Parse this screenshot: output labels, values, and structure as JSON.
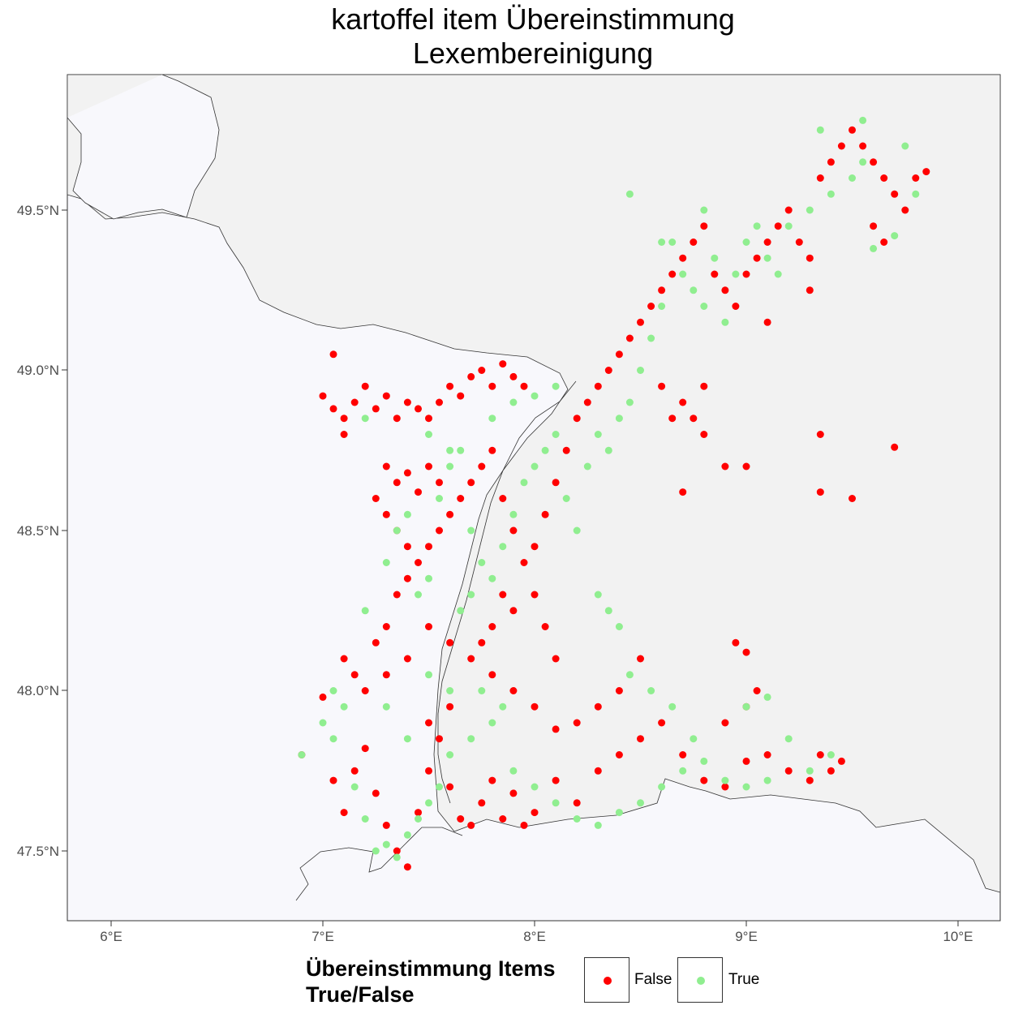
{
  "title_line1": "kartoffel item Übereinstimmung",
  "title_line2": "Lexembereinigung",
  "axes": {
    "x_ticks": [
      "6°E",
      "7°E",
      "8°E",
      "9°E",
      "10°E"
    ],
    "y_ticks": [
      "49.5°N",
      "49.0°N",
      "48.5°N",
      "48.0°N",
      "47.5°N"
    ]
  },
  "legend": {
    "title_line1": "Übereinstimmung Items",
    "title_line2": "True/False",
    "items": [
      {
        "label": "False",
        "color": "#ff0000"
      },
      {
        "label": "True",
        "color": "#90ee90"
      }
    ]
  },
  "colors": {
    "false": "#ff0000",
    "true": "#90ee90",
    "land": "#f2f2f2",
    "background": "#f8f8fc"
  },
  "chart_data": {
    "type": "scatter",
    "xlim": [
      5.82,
      10.22
    ],
    "ylim": [
      47.3,
      49.9
    ],
    "x_ticks": [
      6,
      7,
      8,
      9,
      10
    ],
    "y_ticks": [
      49.5,
      49.0,
      48.5,
      48.0,
      47.5
    ],
    "legend_position": "bottom",
    "series": [
      {
        "name": "False",
        "color": "#ff0000",
        "points": [
          [
            7.0,
            47.98
          ],
          [
            7.05,
            47.72
          ],
          [
            7.1,
            47.62
          ],
          [
            7.15,
            47.75
          ],
          [
            7.2,
            47.82
          ],
          [
            7.25,
            47.68
          ],
          [
            7.3,
            47.58
          ],
          [
            7.35,
            47.5
          ],
          [
            7.4,
            47.45
          ],
          [
            7.45,
            47.62
          ],
          [
            7.5,
            47.75
          ],
          [
            7.55,
            47.85
          ],
          [
            7.6,
            47.7
          ],
          [
            7.65,
            47.6
          ],
          [
            7.7,
            47.58
          ],
          [
            7.75,
            47.65
          ],
          [
            7.8,
            47.72
          ],
          [
            7.85,
            47.6
          ],
          [
            7.9,
            47.68
          ],
          [
            7.95,
            47.58
          ],
          [
            8.0,
            47.62
          ],
          [
            8.1,
            47.72
          ],
          [
            8.2,
            47.65
          ],
          [
            8.3,
            47.75
          ],
          [
            8.4,
            47.8
          ],
          [
            8.5,
            47.85
          ],
          [
            8.6,
            47.9
          ],
          [
            8.7,
            47.8
          ],
          [
            8.8,
            47.72
          ],
          [
            8.9,
            47.7
          ],
          [
            9.0,
            47.78
          ],
          [
            9.1,
            47.8
          ],
          [
            9.2,
            47.75
          ],
          [
            9.3,
            47.72
          ],
          [
            9.35,
            47.8
          ],
          [
            9.4,
            47.75
          ],
          [
            9.45,
            47.78
          ],
          [
            8.9,
            47.9
          ],
          [
            9.0,
            47.95
          ],
          [
            9.05,
            48.0
          ],
          [
            9.0,
            48.12
          ],
          [
            8.95,
            48.15
          ],
          [
            8.5,
            48.1
          ],
          [
            8.4,
            48.0
          ],
          [
            8.3,
            47.95
          ],
          [
            8.2,
            47.9
          ],
          [
            8.1,
            47.88
          ],
          [
            8.0,
            47.95
          ],
          [
            7.9,
            48.0
          ],
          [
            7.8,
            48.05
          ],
          [
            7.7,
            48.1
          ],
          [
            7.6,
            48.15
          ],
          [
            7.5,
            48.2
          ],
          [
            7.4,
            48.1
          ],
          [
            7.3,
            48.05
          ],
          [
            7.2,
            48.0
          ],
          [
            7.15,
            48.05
          ],
          [
            7.1,
            48.1
          ],
          [
            7.25,
            48.15
          ],
          [
            7.3,
            48.2
          ],
          [
            7.35,
            48.3
          ],
          [
            7.4,
            48.35
          ],
          [
            7.45,
            48.4
          ],
          [
            7.5,
            48.45
          ],
          [
            7.55,
            48.5
          ],
          [
            7.6,
            48.55
          ],
          [
            7.65,
            48.6
          ],
          [
            7.7,
            48.65
          ],
          [
            7.75,
            48.7
          ],
          [
            7.8,
            48.75
          ],
          [
            7.85,
            48.6
          ],
          [
            7.9,
            48.5
          ],
          [
            7.95,
            48.4
          ],
          [
            8.0,
            48.3
          ],
          [
            8.05,
            48.2
          ],
          [
            8.1,
            48.1
          ],
          [
            7.85,
            48.3
          ],
          [
            7.8,
            48.2
          ],
          [
            7.75,
            48.15
          ],
          [
            7.9,
            48.25
          ],
          [
            8.0,
            48.45
          ],
          [
            8.05,
            48.55
          ],
          [
            8.1,
            48.65
          ],
          [
            8.15,
            48.75
          ],
          [
            8.2,
            48.85
          ],
          [
            8.25,
            48.9
          ],
          [
            8.3,
            48.95
          ],
          [
            8.35,
            49.0
          ],
          [
            8.4,
            49.05
          ],
          [
            8.45,
            49.1
          ],
          [
            8.5,
            49.15
          ],
          [
            8.55,
            49.2
          ],
          [
            8.6,
            49.25
          ],
          [
            8.65,
            49.3
          ],
          [
            8.7,
            49.35
          ],
          [
            8.75,
            49.4
          ],
          [
            8.8,
            49.45
          ],
          [
            8.85,
            49.3
          ],
          [
            8.9,
            49.25
          ],
          [
            8.95,
            49.2
          ],
          [
            9.0,
            49.3
          ],
          [
            9.05,
            49.35
          ],
          [
            9.1,
            49.4
          ],
          [
            9.15,
            49.45
          ],
          [
            9.2,
            49.5
          ],
          [
            9.25,
            49.4
          ],
          [
            9.3,
            49.35
          ],
          [
            9.35,
            49.6
          ],
          [
            9.4,
            49.65
          ],
          [
            9.45,
            49.7
          ],
          [
            9.5,
            49.75
          ],
          [
            9.55,
            49.7
          ],
          [
            9.6,
            49.65
          ],
          [
            9.65,
            49.6
          ],
          [
            9.7,
            49.55
          ],
          [
            9.75,
            49.5
          ],
          [
            9.8,
            49.6
          ],
          [
            9.85,
            49.62
          ],
          [
            9.6,
            49.45
          ],
          [
            9.65,
            49.4
          ],
          [
            7.0,
            48.92
          ],
          [
            7.05,
            48.88
          ],
          [
            7.1,
            48.85
          ],
          [
            7.15,
            48.9
          ],
          [
            7.2,
            48.95
          ],
          [
            7.25,
            48.88
          ],
          [
            7.3,
            48.92
          ],
          [
            7.35,
            48.85
          ],
          [
            7.4,
            48.9
          ],
          [
            7.45,
            48.88
          ],
          [
            7.5,
            48.85
          ],
          [
            7.55,
            48.9
          ],
          [
            7.6,
            48.95
          ],
          [
            7.65,
            48.92
          ],
          [
            7.7,
            48.98
          ],
          [
            7.75,
            49.0
          ],
          [
            7.8,
            48.95
          ],
          [
            7.85,
            49.02
          ],
          [
            7.9,
            48.98
          ],
          [
            7.95,
            48.95
          ],
          [
            7.3,
            48.7
          ],
          [
            7.35,
            48.65
          ],
          [
            7.4,
            48.68
          ],
          [
            7.45,
            48.62
          ],
          [
            7.5,
            48.7
          ],
          [
            7.55,
            48.65
          ],
          [
            7.25,
            48.6
          ],
          [
            7.3,
            48.55
          ],
          [
            7.35,
            48.5
          ],
          [
            7.4,
            48.45
          ],
          [
            8.7,
            48.62
          ],
          [
            8.9,
            48.7
          ],
          [
            9.0,
            48.7
          ],
          [
            9.35,
            48.8
          ],
          [
            9.35,
            48.62
          ],
          [
            9.5,
            48.6
          ],
          [
            9.7,
            48.76
          ],
          [
            8.8,
            48.8
          ],
          [
            8.75,
            48.85
          ],
          [
            8.65,
            48.85
          ],
          [
            7.05,
            49.05
          ],
          [
            7.1,
            48.8
          ],
          [
            6.9,
            47.8
          ],
          [
            7.5,
            47.9
          ],
          [
            7.6,
            47.95
          ],
          [
            8.6,
            48.95
          ],
          [
            8.7,
            48.9
          ],
          [
            8.8,
            48.95
          ],
          [
            9.1,
            49.15
          ],
          [
            9.3,
            49.25
          ]
        ]
      },
      {
        "name": "True",
        "color": "#90ee90",
        "points": [
          [
            6.9,
            47.8
          ],
          [
            7.0,
            47.9
          ],
          [
            7.05,
            47.85
          ],
          [
            7.15,
            47.7
          ],
          [
            7.2,
            47.6
          ],
          [
            7.25,
            47.5
          ],
          [
            7.3,
            47.52
          ],
          [
            7.35,
            47.48
          ],
          [
            7.4,
            47.55
          ],
          [
            7.45,
            47.6
          ],
          [
            7.5,
            47.65
          ],
          [
            7.55,
            47.7
          ],
          [
            7.6,
            47.8
          ],
          [
            7.7,
            47.85
          ],
          [
            7.8,
            47.9
          ],
          [
            7.9,
            47.75
          ],
          [
            8.0,
            47.7
          ],
          [
            8.1,
            47.65
          ],
          [
            8.2,
            47.6
          ],
          [
            8.3,
            47.58
          ],
          [
            8.4,
            47.62
          ],
          [
            8.5,
            47.65
          ],
          [
            8.6,
            47.7
          ],
          [
            8.7,
            47.75
          ],
          [
            8.8,
            47.78
          ],
          [
            8.9,
            47.72
          ],
          [
            9.0,
            47.7
          ],
          [
            9.1,
            47.72
          ],
          [
            9.3,
            47.75
          ],
          [
            9.4,
            47.8
          ],
          [
            7.2,
            48.25
          ],
          [
            7.3,
            48.4
          ],
          [
            7.35,
            48.5
          ],
          [
            7.4,
            48.55
          ],
          [
            7.45,
            48.3
          ],
          [
            7.5,
            48.35
          ],
          [
            7.55,
            48.6
          ],
          [
            7.6,
            48.7
          ],
          [
            7.65,
            48.75
          ],
          [
            7.7,
            48.5
          ],
          [
            7.75,
            48.4
          ],
          [
            7.8,
            48.35
          ],
          [
            7.85,
            48.45
          ],
          [
            7.9,
            48.55
          ],
          [
            7.95,
            48.65
          ],
          [
            8.0,
            48.7
          ],
          [
            8.05,
            48.75
          ],
          [
            8.1,
            48.8
          ],
          [
            8.15,
            48.6
          ],
          [
            8.2,
            48.5
          ],
          [
            8.25,
            48.7
          ],
          [
            8.3,
            48.8
          ],
          [
            8.35,
            48.75
          ],
          [
            8.4,
            48.85
          ],
          [
            8.45,
            48.9
          ],
          [
            8.5,
            49.0
          ],
          [
            8.55,
            49.1
          ],
          [
            8.6,
            49.2
          ],
          [
            8.65,
            49.4
          ],
          [
            8.7,
            49.3
          ],
          [
            8.75,
            49.25
          ],
          [
            8.8,
            49.2
          ],
          [
            8.85,
            49.35
          ],
          [
            8.9,
            49.15
          ],
          [
            8.95,
            49.3
          ],
          [
            9.0,
            49.4
          ],
          [
            9.05,
            49.45
          ],
          [
            9.1,
            49.35
          ],
          [
            9.15,
            49.3
          ],
          [
            9.2,
            49.45
          ],
          [
            9.3,
            49.5
          ],
          [
            9.4,
            49.55
          ],
          [
            9.5,
            49.6
          ],
          [
            9.55,
            49.65
          ],
          [
            9.6,
            49.38
          ],
          [
            9.7,
            49.42
          ],
          [
            9.75,
            49.7
          ],
          [
            9.8,
            49.55
          ],
          [
            9.55,
            49.78
          ],
          [
            9.35,
            49.75
          ],
          [
            8.45,
            49.55
          ],
          [
            8.6,
            49.4
          ],
          [
            8.8,
            49.5
          ],
          [
            7.2,
            48.85
          ],
          [
            7.5,
            48.8
          ],
          [
            7.6,
            48.75
          ],
          [
            7.8,
            48.85
          ],
          [
            7.9,
            48.9
          ],
          [
            8.0,
            48.92
          ],
          [
            8.1,
            48.95
          ],
          [
            7.05,
            48.0
          ],
          [
            7.1,
            47.95
          ],
          [
            7.3,
            47.95
          ],
          [
            7.4,
            47.85
          ],
          [
            7.5,
            48.05
          ],
          [
            7.6,
            48.0
          ],
          [
            7.65,
            48.25
          ],
          [
            7.7,
            48.3
          ],
          [
            7.75,
            48.0
          ],
          [
            7.85,
            47.95
          ],
          [
            8.3,
            48.3
          ],
          [
            8.35,
            48.25
          ],
          [
            8.4,
            48.2
          ],
          [
            8.45,
            48.05
          ],
          [
            8.55,
            48.0
          ],
          [
            8.65,
            47.95
          ],
          [
            9.0,
            47.95
          ],
          [
            9.1,
            47.98
          ],
          [
            9.2,
            47.85
          ],
          [
            8.75,
            47.85
          ]
        ]
      }
    ]
  }
}
